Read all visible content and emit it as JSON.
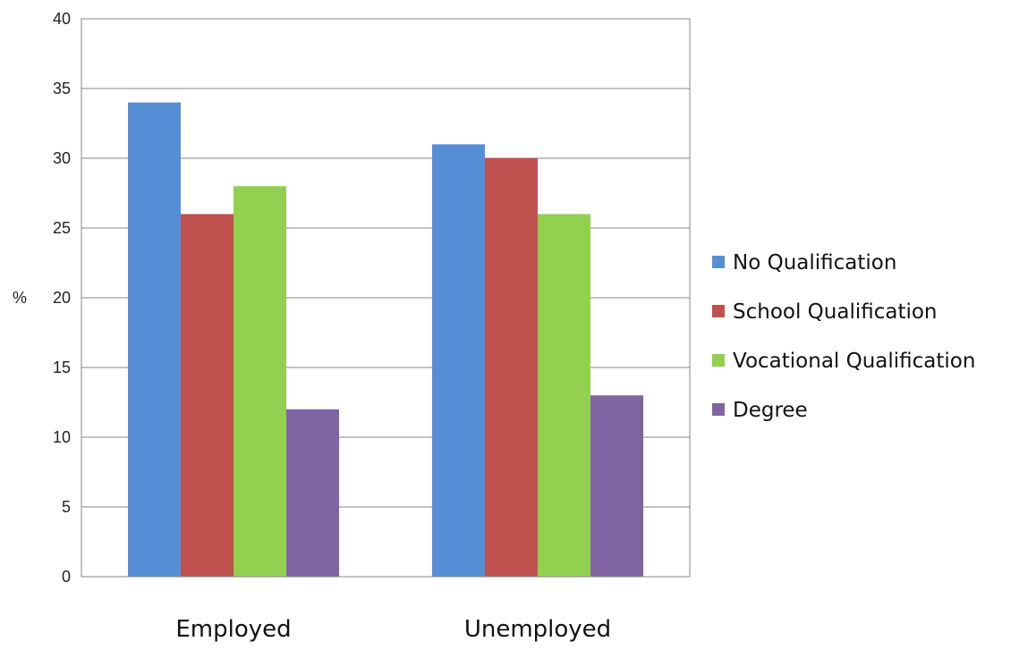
{
  "chart_data": {
    "type": "bar",
    "title": "",
    "xlabel": "",
    "ylabel": "%",
    "ylim": [
      0,
      40
    ],
    "yticks": [
      0,
      5,
      10,
      15,
      20,
      25,
      30,
      35,
      40
    ],
    "grid": true,
    "legend_position": "right",
    "categories": [
      "Employed",
      "Unemployed"
    ],
    "series": [
      {
        "name": "No Qualification",
        "values": [
          34,
          31
        ],
        "color": "#558ED5"
      },
      {
        "name": "School Qualification",
        "values": [
          26,
          30
        ],
        "color": "#C0504D"
      },
      {
        "name": "Vocational Qualification",
        "values": [
          28,
          26
        ],
        "color": "#92D050"
      },
      {
        "name": "Degree",
        "values": [
          12,
          13
        ],
        "color": "#8064A2"
      }
    ]
  }
}
